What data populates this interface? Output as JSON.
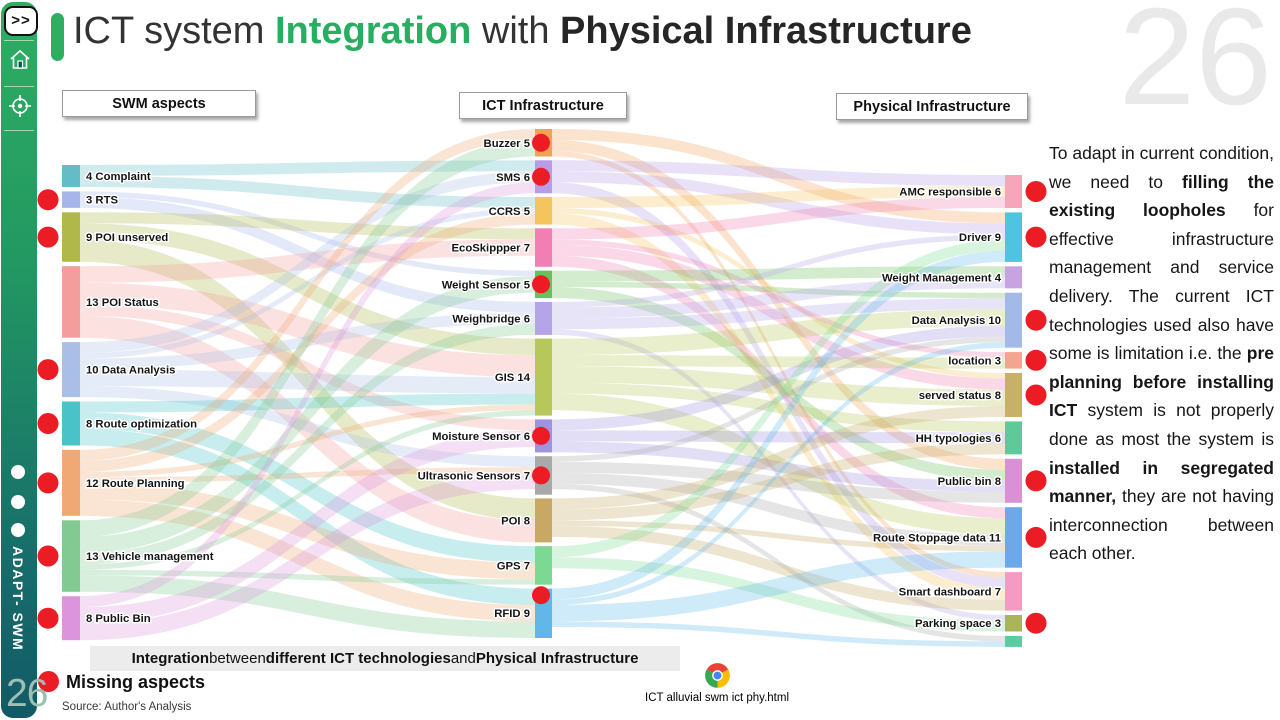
{
  "colors": {
    "accent_green": "#2fae62",
    "missing_red": "#ec1c24",
    "title_green": "#27ae60"
  },
  "sidebar": {
    "expand_label": ">>",
    "icons": [
      "home-icon",
      "target-icon"
    ],
    "brand": "ADAPT- SWM",
    "page_number": "26"
  },
  "watermark": "26",
  "title_runs": [
    {
      "text": "ICT system ",
      "style": "normal"
    },
    {
      "text": "Integration",
      "style": "green"
    },
    {
      "text": " with ",
      "style": "normal"
    },
    {
      "text": "Physical Infrastructure",
      "style": "bold"
    }
  ],
  "column_headers": {
    "swm": "SWM aspects",
    "ict": "ICT Infrastructure",
    "physical": "Physical Infrastructure"
  },
  "chart_data": {
    "type": "sankey",
    "title": "Integration between different ICT technologies and Physical Infrastructure",
    "legend": {
      "missing_marker": "red-dot",
      "missing_label": "Missing aspects"
    },
    "columns": [
      {
        "name": "SWM aspects",
        "nodes": [
          {
            "label": "4 Complaint",
            "value": 4,
            "color": "#63bcc6",
            "missing": false
          },
          {
            "label": "3 RTS",
            "value": 3,
            "color": "#a7b6ea",
            "missing": true
          },
          {
            "label": "9 POI unserved",
            "value": 9,
            "color": "#b0b84a",
            "missing": true
          },
          {
            "label": "13 POI Status",
            "value": 13,
            "color": "#f49d9d",
            "missing": false
          },
          {
            "label": "10 Data Analysis",
            "value": 10,
            "color": "#a9bfe8",
            "missing": true
          },
          {
            "label": "8 Route optimization",
            "value": 8,
            "color": "#49c2c8",
            "missing": true
          },
          {
            "label": "12 Route Planning",
            "value": 12,
            "color": "#f0a975",
            "missing": true
          },
          {
            "label": "13 Vehicle management",
            "value": 13,
            "color": "#82ca92",
            "missing": true
          },
          {
            "label": "8 Public Bin",
            "value": 8,
            "color": "#dc95dc",
            "missing": true
          }
        ]
      },
      {
        "name": "ICT Infrastructure",
        "nodes": [
          {
            "label": "Buzzer 5",
            "value": 5,
            "color": "#f2a258",
            "missing": true
          },
          {
            "label": "SMS 6",
            "value": 6,
            "color": "#b79ce6",
            "missing": true
          },
          {
            "label": "CCRS 5",
            "value": 5,
            "color": "#f4c45e",
            "missing": false
          },
          {
            "label": "EcoSkippper 7",
            "value": 7,
            "color": "#f27fb2",
            "missing": false
          },
          {
            "label": "Weight Sensor 5",
            "value": 5,
            "color": "#6cc05c",
            "missing": true
          },
          {
            "label": "Weighbridge 6",
            "value": 6,
            "color": "#b4a5e8",
            "missing": false
          },
          {
            "label": "GIS 14",
            "value": 14,
            "color": "#b7c75a",
            "missing": false
          },
          {
            "label": "Moisture Sensor 6",
            "value": 6,
            "color": "#9f92e0",
            "missing": true
          },
          {
            "label": "Ultrasonic Sensors 7",
            "value": 7,
            "color": "#a9a9a9",
            "missing": true
          },
          {
            "label": "POI 8",
            "value": 8,
            "color": "#c8a964",
            "missing": false
          },
          {
            "label": "GPS 7",
            "value": 7,
            "color": "#7cd993",
            "missing": false
          },
          {
            "label": "RFID 9",
            "value": 9,
            "color": "#61b8e8",
            "missing": true,
            "dot_dy": -18
          }
        ]
      },
      {
        "name": "Physical Infrastructure",
        "nodes": [
          {
            "label": "AMC  responsible 6",
            "value": 6,
            "color": "#f4a6bb",
            "missing": true
          },
          {
            "label": "Driver 9",
            "value": 9,
            "color": "#4fc4e0",
            "missing": true
          },
          {
            "label": "Weight Management 4",
            "value": 4,
            "color": "#c7a3e0",
            "missing": false
          },
          {
            "label": "Data Analysis 10",
            "value": 10,
            "color": "#a3b9e8",
            "missing": true
          },
          {
            "label": "location 3",
            "value": 3,
            "color": "#f2a58f",
            "missing": true
          },
          {
            "label": "served status 8",
            "value": 8,
            "color": "#c7b068",
            "missing": true
          },
          {
            "label": "HH typologies 6",
            "value": 6,
            "color": "#5eca9b",
            "missing": false
          },
          {
            "label": "Public bin 8",
            "value": 8,
            "color": "#d791d4",
            "missing": true
          },
          {
            "label": "Route Stoppage data 11",
            "value": 11,
            "color": "#6fa8e8",
            "missing": true
          },
          {
            "label": "Smart dashboard 7",
            "value": 7,
            "color": "#f49bc4",
            "missing": false
          },
          {
            "label": "Parking space 3",
            "value": 3,
            "color": "#a9b556",
            "missing": true
          },
          {
            "label": "",
            "value": 2,
            "color": "#5ecaa0",
            "missing": false
          }
        ]
      }
    ],
    "links_estimated": true,
    "links_left_middle": [
      [
        0,
        1,
        2
      ],
      [
        0,
        2,
        2
      ],
      [
        1,
        4,
        1
      ],
      [
        1,
        5,
        2
      ],
      [
        2,
        3,
        2
      ],
      [
        2,
        6,
        3
      ],
      [
        2,
        9,
        4
      ],
      [
        3,
        3,
        3
      ],
      [
        3,
        6,
        4
      ],
      [
        3,
        7,
        2
      ],
      [
        3,
        9,
        4
      ],
      [
        4,
        1,
        2
      ],
      [
        4,
        2,
        1
      ],
      [
        4,
        5,
        2
      ],
      [
        4,
        6,
        3
      ],
      [
        4,
        8,
        2
      ],
      [
        5,
        6,
        2
      ],
      [
        5,
        10,
        3
      ],
      [
        5,
        11,
        3
      ],
      [
        6,
        0,
        2
      ],
      [
        6,
        2,
        2
      ],
      [
        6,
        6,
        1
      ],
      [
        6,
        8,
        1
      ],
      [
        6,
        10,
        3
      ],
      [
        6,
        11,
        3
      ],
      [
        7,
        0,
        3
      ],
      [
        7,
        4,
        3
      ],
      [
        7,
        5,
        2
      ],
      [
        7,
        6,
        1
      ],
      [
        7,
        10,
        1
      ],
      [
        7,
        11,
        3
      ],
      [
        8,
        1,
        2
      ],
      [
        8,
        7,
        3
      ],
      [
        8,
        8,
        3
      ]
    ],
    "links_middle_right": [
      [
        0,
        1,
        2
      ],
      [
        0,
        7,
        2
      ],
      [
        0,
        9,
        1
      ],
      [
        1,
        0,
        2
      ],
      [
        1,
        1,
        2
      ],
      [
        1,
        9,
        2
      ],
      [
        2,
        0,
        2
      ],
      [
        2,
        5,
        1
      ],
      [
        2,
        9,
        2
      ],
      [
        3,
        0,
        2
      ],
      [
        3,
        4,
        1
      ],
      [
        3,
        5,
        2
      ],
      [
        3,
        8,
        2
      ],
      [
        4,
        2,
        2
      ],
      [
        4,
        3,
        1
      ],
      [
        4,
        7,
        2
      ],
      [
        5,
        1,
        1
      ],
      [
        5,
        2,
        2
      ],
      [
        5,
        3,
        2
      ],
      [
        5,
        10,
        1
      ],
      [
        6,
        3,
        3
      ],
      [
        6,
        4,
        2
      ],
      [
        6,
        5,
        3
      ],
      [
        6,
        6,
        2
      ],
      [
        6,
        8,
        3
      ],
      [
        7,
        3,
        2
      ],
      [
        7,
        6,
        2
      ],
      [
        7,
        7,
        2
      ],
      [
        8,
        3,
        1
      ],
      [
        8,
        7,
        2
      ],
      [
        8,
        8,
        2
      ],
      [
        8,
        11,
        1
      ],
      [
        9,
        5,
        2
      ],
      [
        9,
        6,
        2
      ],
      [
        9,
        8,
        1
      ],
      [
        9,
        9,
        2
      ],
      [
        10,
        1,
        2
      ],
      [
        10,
        10,
        2
      ],
      [
        11,
        1,
        2
      ],
      [
        11,
        3,
        1
      ],
      [
        11,
        8,
        3
      ],
      [
        11,
        11,
        1
      ]
    ]
  },
  "caption_runs": [
    {
      "text": "Integration",
      "bold": true
    },
    {
      "text": " between ",
      "bold": false
    },
    {
      "text": "different ICT technologies",
      "bold": true
    },
    {
      "text": " and ",
      "bold": false
    },
    {
      "text": "Physical Infrastructure",
      "bold": true
    }
  ],
  "legend_missing_label": "Missing aspects",
  "source_note": "Source: Author's Analysis",
  "shortcut": {
    "label": "ICT alluvial swm ict phy.html",
    "icon": "chrome-icon"
  },
  "body_text_runs": [
    {
      "text": "To adapt in current condition, we need to ",
      "bold": false
    },
    {
      "text": "filling the existing loopholes",
      "bold": true
    },
    {
      "text": " for effective infrastructure management and service delivery. The current ICT technologies used also have some is limitation i.e. the ",
      "bold": false
    },
    {
      "text": "pre planning before installing ICT",
      "bold": true
    },
    {
      "text": " system is not properly done as most the system is ",
      "bold": false
    },
    {
      "text": "installed in segregated manner,",
      "bold": true
    },
    {
      "text": " they are not having interconnection between each other.",
      "bold": false
    }
  ]
}
